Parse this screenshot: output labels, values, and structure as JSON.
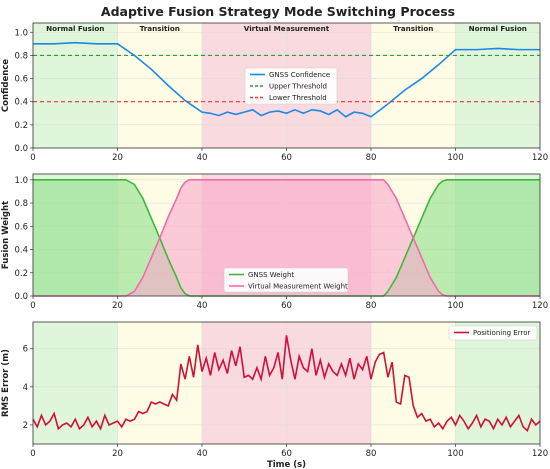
{
  "figure_title": "Adaptive Fusion Strategy Mode Switching Process",
  "phases": [
    {
      "label": "Normal Fusion",
      "x0": 0,
      "x1": 20,
      "color": "#d9f5d3"
    },
    {
      "label": "Transition",
      "x0": 20,
      "x1": 40,
      "color": "#fffbe0"
    },
    {
      "label": "Virtual Measurement",
      "x0": 40,
      "x1": 80,
      "color": "#f8d3d8"
    },
    {
      "label": "Transition",
      "x0": 80,
      "x1": 100,
      "color": "#fffbe0"
    },
    {
      "label": "Normal Fusion",
      "x0": 100,
      "x1": 120,
      "color": "#d9f5d3"
    }
  ],
  "chart_data": [
    {
      "type": "line",
      "ylabel": "Confidence",
      "xlabel": "",
      "xlim": [
        0,
        120
      ],
      "ylim": [
        0,
        1.08
      ],
      "xticks": [
        "0",
        "20",
        "40",
        "60",
        "80",
        "100",
        "120"
      ],
      "yticks": [
        "0.0",
        "0.2",
        "0.4",
        "0.6",
        "0.8",
        "1.0"
      ],
      "grid": true,
      "legend_position": "center",
      "series": [
        {
          "name": "GNSS Confidence",
          "color": "#1e88e5",
          "style": "solid",
          "x": [
            0,
            5,
            10,
            15,
            19,
            20,
            24,
            28,
            32,
            36,
            38,
            40,
            42,
            44,
            46,
            48,
            50,
            52,
            54,
            56,
            58,
            60,
            62,
            64,
            66,
            68,
            70,
            72,
            74,
            76,
            78,
            80,
            84,
            88,
            92,
            96,
            100,
            105,
            110,
            115,
            120
          ],
          "y": [
            0.9,
            0.9,
            0.91,
            0.9,
            0.9,
            0.9,
            0.8,
            0.68,
            0.54,
            0.41,
            0.36,
            0.31,
            0.3,
            0.28,
            0.31,
            0.29,
            0.31,
            0.33,
            0.28,
            0.31,
            0.32,
            0.3,
            0.33,
            0.3,
            0.33,
            0.32,
            0.29,
            0.33,
            0.27,
            0.31,
            0.3,
            0.27,
            0.38,
            0.5,
            0.6,
            0.72,
            0.85,
            0.85,
            0.86,
            0.85,
            0.85
          ]
        },
        {
          "name": "Upper Threshold",
          "color": "#2e9b3a",
          "style": "dashed",
          "x": [
            0,
            120
          ],
          "y": [
            0.8,
            0.8
          ]
        },
        {
          "name": "Lower Threshold",
          "color": "#e53935",
          "style": "dashed",
          "x": [
            0,
            120
          ],
          "y": [
            0.4,
            0.4
          ]
        }
      ]
    },
    {
      "type": "area",
      "ylabel": "Fusion Weight",
      "xlabel": "",
      "xlim": [
        0,
        120
      ],
      "ylim": [
        0,
        1.05
      ],
      "xticks": [
        "0",
        "20",
        "40",
        "60",
        "80",
        "100",
        "120"
      ],
      "yticks": [
        "0.0",
        "0.2",
        "0.4",
        "0.6",
        "0.8",
        "1.0"
      ],
      "grid": true,
      "legend_position": "bottom-center",
      "series": [
        {
          "name": "GNSS Weight",
          "color": "#3cb93c",
          "fill": "#8fe08a",
          "x": [
            0,
            20,
            22,
            24,
            26,
            28,
            30,
            32,
            34,
            35,
            36,
            37,
            80,
            83,
            84,
            86,
            88,
            90,
            92,
            94,
            96,
            97,
            98,
            100,
            120
          ],
          "y": [
            1,
            1,
            1,
            0.96,
            0.84,
            0.67,
            0.5,
            0.32,
            0.16,
            0.07,
            0.02,
            0,
            0,
            0,
            0.04,
            0.16,
            0.33,
            0.5,
            0.67,
            0.84,
            0.96,
            0.99,
            1,
            1,
            1
          ]
        },
        {
          "name": "Virtual Measurement Weight",
          "color": "#f06baa",
          "fill": "#f9a8cc",
          "x": [
            0,
            20,
            22,
            24,
            26,
            28,
            30,
            32,
            34,
            35,
            36,
            37,
            80,
            83,
            84,
            86,
            88,
            90,
            92,
            94,
            96,
            97,
            98,
            100,
            120
          ],
          "y": [
            0,
            0,
            0,
            0.04,
            0.16,
            0.33,
            0.5,
            0.68,
            0.84,
            0.93,
            0.98,
            1,
            1,
            1,
            0.96,
            0.84,
            0.67,
            0.5,
            0.33,
            0.16,
            0.04,
            0.01,
            0,
            0,
            0
          ]
        }
      ]
    },
    {
      "type": "line",
      "ylabel": "RMS Error (m)",
      "xlabel": "Time (s)",
      "xlim": [
        0,
        120
      ],
      "ylim": [
        1,
        7.4
      ],
      "xticks": [
        "0",
        "20",
        "40",
        "60",
        "80",
        "100",
        "120"
      ],
      "yticks": [
        "2",
        "4",
        "6"
      ],
      "grid": true,
      "legend_position": "top-right",
      "series": [
        {
          "name": "Positioning Error",
          "color": "#d0103a",
          "style": "solid",
          "x": [
            0,
            1,
            2,
            3,
            4,
            5,
            6,
            7,
            8,
            9,
            10,
            11,
            12,
            13,
            14,
            15,
            16,
            17,
            18,
            19,
            20,
            21,
            22,
            23,
            24,
            25,
            26,
            27,
            28,
            29,
            30,
            31,
            32,
            33,
            34,
            35,
            36,
            37,
            38,
            39,
            40,
            41,
            42,
            43,
            44,
            45,
            46,
            47,
            48,
            49,
            50,
            51,
            52,
            53,
            54,
            55,
            56,
            57,
            58,
            59,
            60,
            61,
            62,
            63,
            64,
            65,
            66,
            67,
            68,
            69,
            70,
            71,
            72,
            73,
            74,
            75,
            76,
            77,
            78,
            79,
            80,
            81,
            82,
            83,
            84,
            85,
            86,
            87,
            88,
            89,
            90,
            91,
            92,
            93,
            94,
            95,
            96,
            97,
            98,
            99,
            100,
            101,
            102,
            103,
            104,
            105,
            106,
            107,
            108,
            109,
            110,
            111,
            112,
            113,
            114,
            115,
            116,
            117,
            118,
            119,
            120
          ],
          "y": [
            2.3,
            1.9,
            2.5,
            2.0,
            2.2,
            2.6,
            1.8,
            2.0,
            2.1,
            1.9,
            2.3,
            1.8,
            2.0,
            2.4,
            1.9,
            2.2,
            1.8,
            2.5,
            2.0,
            2.1,
            2.2,
            1.9,
            2.3,
            2.2,
            2.3,
            2.7,
            2.6,
            2.7,
            3.2,
            3.1,
            3.2,
            3.1,
            3.0,
            3.6,
            3.3,
            5.2,
            4.4,
            5.6,
            4.5,
            6.2,
            4.8,
            5.5,
            4.6,
            5.8,
            4.9,
            5.4,
            4.7,
            5.9,
            5.1,
            6.1,
            4.5,
            4.6,
            4.4,
            5.0,
            4.4,
            5.6,
            4.6,
            5.0,
            5.8,
            4.4,
            6.7,
            5.4,
            4.4,
            5.6,
            5.0,
            4.8,
            6.0,
            4.6,
            5.4,
            4.5,
            5.2,
            4.8,
            4.6,
            5.2,
            4.6,
            5.5,
            4.4,
            5.2,
            4.9,
            5.6,
            4.4,
            5.3,
            5.7,
            5.8,
            4.5,
            5.3,
            3.2,
            3.1,
            4.6,
            4.5,
            3.0,
            2.4,
            2.6,
            2.2,
            2.3,
            1.9,
            2.1,
            1.8,
            2.2,
            2.4,
            2.0,
            2.5,
            2.2,
            1.8,
            2.1,
            2.5,
            1.9,
            2.3,
            2.2,
            1.8,
            2.3,
            2.0,
            2.4,
            1.9,
            2.2,
            2.5,
            1.9,
            1.7,
            2.3,
            2.0,
            2.2
          ]
        }
      ]
    }
  ]
}
